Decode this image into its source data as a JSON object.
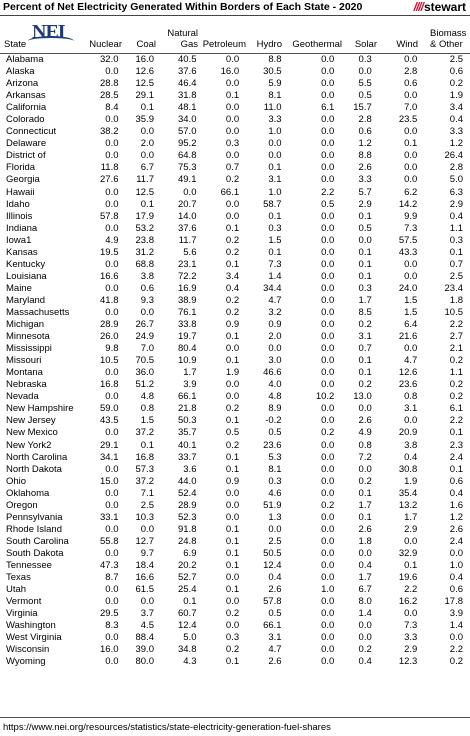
{
  "title": "Percent of Net Electricity Generated Within Borders of Each State - 2020",
  "brand": {
    "slashes": "////",
    "name": "stewart"
  },
  "logo": {
    "text": "NEI"
  },
  "columns": {
    "state": "State",
    "nuclear": "Nuclear",
    "coal": "Coal",
    "natural_gas_1": "Natural",
    "natural_gas_2": "Gas",
    "petroleum": "Petroleum",
    "hydro": "Hydro",
    "geothermal": "Geothermal",
    "solar": "Solar",
    "wind": "Wind",
    "biomass_1": "Biomass",
    "biomass_2": "& Other"
  },
  "rows": [
    [
      "Alabama",
      "32.0",
      "16.0",
      "40.5",
      "0.0",
      "8.8",
      "0.0",
      "0.3",
      "0.0",
      "2.5"
    ],
    [
      "Alaska",
      "0.0",
      "12.6",
      "37.6",
      "16.0",
      "30.5",
      "0.0",
      "0.0",
      "2.8",
      "0.6"
    ],
    [
      "Arizona",
      "28.8",
      "12.5",
      "46.4",
      "0.0",
      "5.9",
      "0.0",
      "5.5",
      "0.6",
      "0.2"
    ],
    [
      "Arkansas",
      "28.5",
      "29.1",
      "31.8",
      "0.1",
      "8.1",
      "0.0",
      "0.5",
      "0.0",
      "1.9"
    ],
    [
      "California",
      "8.4",
      "0.1",
      "48.1",
      "0.0",
      "11.0",
      "6.1",
      "15.7",
      "7.0",
      "3.4"
    ],
    [
      "Colorado",
      "0.0",
      "35.9",
      "34.0",
      "0.0",
      "3.3",
      "0.0",
      "2.8",
      "23.5",
      "0.4"
    ],
    [
      "Connecticut",
      "38.2",
      "0.0",
      "57.0",
      "0.0",
      "1.0",
      "0.0",
      "0.6",
      "0.0",
      "3.3"
    ],
    [
      "Delaware",
      "0.0",
      "2.0",
      "95.2",
      "0.3",
      "0.0",
      "0.0",
      "1.2",
      "0.1",
      "1.2"
    ],
    [
      "District of",
      "0.0",
      "0.0",
      "64.8",
      "0.0",
      "0.0",
      "0.0",
      "8.8",
      "0.0",
      "26.4"
    ],
    [
      "Florida",
      "11.8",
      "6.7",
      "75.3",
      "0.7",
      "0.1",
      "0.0",
      "2.6",
      "0.0",
      "2.8"
    ],
    [
      "Georgia",
      "27.6",
      "11.7",
      "49.1",
      "0.2",
      "3.1",
      "0.0",
      "3.3",
      "0.0",
      "5.0"
    ],
    [
      "Hawaii",
      "0.0",
      "12.5",
      "0.0",
      "66.1",
      "1.0",
      "2.2",
      "5.7",
      "6.2",
      "6.3"
    ],
    [
      "Idaho",
      "0.0",
      "0.1",
      "20.7",
      "0.0",
      "58.7",
      "0.5",
      "2.9",
      "14.2",
      "2.9"
    ],
    [
      "Illinois",
      "57.8",
      "17.9",
      "14.0",
      "0.0",
      "0.1",
      "0.0",
      "0.1",
      "9.9",
      "0.4"
    ],
    [
      "Indiana",
      "0.0",
      "53.2",
      "37.6",
      "0.1",
      "0.3",
      "0.0",
      "0.5",
      "7.3",
      "1.1"
    ],
    [
      "Iowa1",
      "4.9",
      "23.8",
      "11.7",
      "0.2",
      "1.5",
      "0.0",
      "0.0",
      "57.5",
      "0.3"
    ],
    [
      "Kansas",
      "19.5",
      "31.2",
      "5.6",
      "0.2",
      "0.1",
      "0.0",
      "0.1",
      "43.3",
      "0.1"
    ],
    [
      "Kentucky",
      "0.0",
      "68.8",
      "23.1",
      "0.1",
      "7.3",
      "0.0",
      "0.1",
      "0.0",
      "0.7"
    ],
    [
      "Louisiana",
      "16.6",
      "3.8",
      "72.2",
      "3.4",
      "1.4",
      "0.0",
      "0.1",
      "0.0",
      "2.5"
    ],
    [
      "Maine",
      "0.0",
      "0.6",
      "16.9",
      "0.4",
      "34.4",
      "0.0",
      "0.3",
      "24.0",
      "23.4"
    ],
    [
      "Maryland",
      "41.8",
      "9.3",
      "38.9",
      "0.2",
      "4.7",
      "0.0",
      "1.7",
      "1.5",
      "1.8"
    ],
    [
      "Massachusetts",
      "0.0",
      "0.0",
      "76.1",
      "0.2",
      "3.2",
      "0.0",
      "8.5",
      "1.5",
      "10.5"
    ],
    [
      "Michigan",
      "28.9",
      "26.7",
      "33.8",
      "0.9",
      "0.9",
      "0.0",
      "0.2",
      "6.4",
      "2.2"
    ],
    [
      "Minnesota",
      "26.0",
      "24.9",
      "19.7",
      "0.1",
      "2.0",
      "0.0",
      "3.1",
      "21.6",
      "2.7"
    ],
    [
      "Mississippi",
      "9.8",
      "7.0",
      "80.4",
      "0.0",
      "0.0",
      "0.0",
      "0.7",
      "0.0",
      "2.1"
    ],
    [
      "Missouri",
      "10.5",
      "70.5",
      "10.9",
      "0.1",
      "3.0",
      "0.0",
      "0.1",
      "4.7",
      "0.2"
    ],
    [
      "Montana",
      "0.0",
      "36.0",
      "1.7",
      "1.9",
      "46.6",
      "0.0",
      "0.1",
      "12.6",
      "1.1"
    ],
    [
      "Nebraska",
      "16.8",
      "51.2",
      "3.9",
      "0.0",
      "4.0",
      "0.0",
      "0.2",
      "23.6",
      "0.2"
    ],
    [
      "Nevada",
      "0.0",
      "4.8",
      "66.1",
      "0.0",
      "4.8",
      "10.2",
      "13.0",
      "0.8",
      "0.2"
    ],
    [
      "New Hampshire",
      "59.0",
      "0.8",
      "21.8",
      "0.2",
      "8.9",
      "0.0",
      "0.0",
      "3.1",
      "6.1"
    ],
    [
      "New Jersey",
      "43.5",
      "1.5",
      "50.3",
      "0.1",
      "-0.2",
      "0.0",
      "2.6",
      "0.0",
      "2.2"
    ],
    [
      "New Mexico",
      "0.0",
      "37.2",
      "35.7",
      "0.5",
      "0.5",
      "0.2",
      "4.9",
      "20.9",
      "0.1"
    ],
    [
      "New York2",
      "29.1",
      "0.1",
      "40.1",
      "0.2",
      "23.6",
      "0.0",
      "0.8",
      "3.8",
      "2.3"
    ],
    [
      "North Carolina",
      "34.1",
      "16.8",
      "33.7",
      "0.1",
      "5.3",
      "0.0",
      "7.2",
      "0.4",
      "2.4"
    ],
    [
      "North Dakota",
      "0.0",
      "57.3",
      "3.6",
      "0.1",
      "8.1",
      "0.0",
      "0.0",
      "30.8",
      "0.1"
    ],
    [
      "Ohio",
      "15.0",
      "37.2",
      "44.0",
      "0.9",
      "0.3",
      "0.0",
      "0.2",
      "1.9",
      "0.6"
    ],
    [
      "Oklahoma",
      "0.0",
      "7.1",
      "52.4",
      "0.0",
      "4.6",
      "0.0",
      "0.1",
      "35.4",
      "0.4"
    ],
    [
      "Oregon",
      "0.0",
      "2.5",
      "28.9",
      "0.0",
      "51.9",
      "0.2",
      "1.7",
      "13.2",
      "1.6"
    ],
    [
      "Pennsylvania",
      "33.1",
      "10.3",
      "52.3",
      "0.0",
      "1.3",
      "0.0",
      "0.1",
      "1.7",
      "1.2"
    ],
    [
      "Rhode Island",
      "0.0",
      "0.0",
      "91.8",
      "0.1",
      "0.0",
      "0.0",
      "2.6",
      "2.9",
      "2.6"
    ],
    [
      "South Carolina",
      "55.8",
      "12.7",
      "24.8",
      "0.1",
      "2.5",
      "0.0",
      "1.8",
      "0.0",
      "2.4"
    ],
    [
      "South Dakota",
      "0.0",
      "9.7",
      "6.9",
      "0.1",
      "50.5",
      "0.0",
      "0.0",
      "32.9",
      "0.0"
    ],
    [
      "Tennessee",
      "47.3",
      "18.4",
      "20.2",
      "0.1",
      "12.4",
      "0.0",
      "0.4",
      "0.1",
      "1.0"
    ],
    [
      "Texas",
      "8.7",
      "16.6",
      "52.7",
      "0.0",
      "0.4",
      "0.0",
      "1.7",
      "19.6",
      "0.4"
    ],
    [
      "Utah",
      "0.0",
      "61.5",
      "25.4",
      "0.1",
      "2.6",
      "1.0",
      "6.7",
      "2.2",
      "0.6"
    ],
    [
      "Vermont",
      "0.0",
      "0.0",
      "0.1",
      "0.0",
      "57.8",
      "0.0",
      "8.0",
      "16.2",
      "17.8"
    ],
    [
      "Virginia",
      "29.5",
      "3.7",
      "60.7",
      "0.2",
      "0.5",
      "0.0",
      "1.4",
      "0.0",
      "3.9"
    ],
    [
      "Washington",
      "8.3",
      "4.5",
      "12.4",
      "0.0",
      "66.1",
      "0.0",
      "0.0",
      "7.3",
      "1.4"
    ],
    [
      "West Virginia",
      "0.0",
      "88.4",
      "5.0",
      "0.3",
      "3.1",
      "0.0",
      "0.0",
      "3.3",
      "0.0"
    ],
    [
      "Wisconsin",
      "16.0",
      "39.0",
      "34.8",
      "0.2",
      "4.7",
      "0.0",
      "0.2",
      "2.9",
      "2.2"
    ],
    [
      "Wyoming",
      "0.0",
      "80.0",
      "4.3",
      "0.1",
      "2.6",
      "0.0",
      "0.4",
      "12.3",
      "0.2"
    ]
  ],
  "source": "https://www.nei.org/resources/statistics/state-electricity-generation-fuel-shares"
}
